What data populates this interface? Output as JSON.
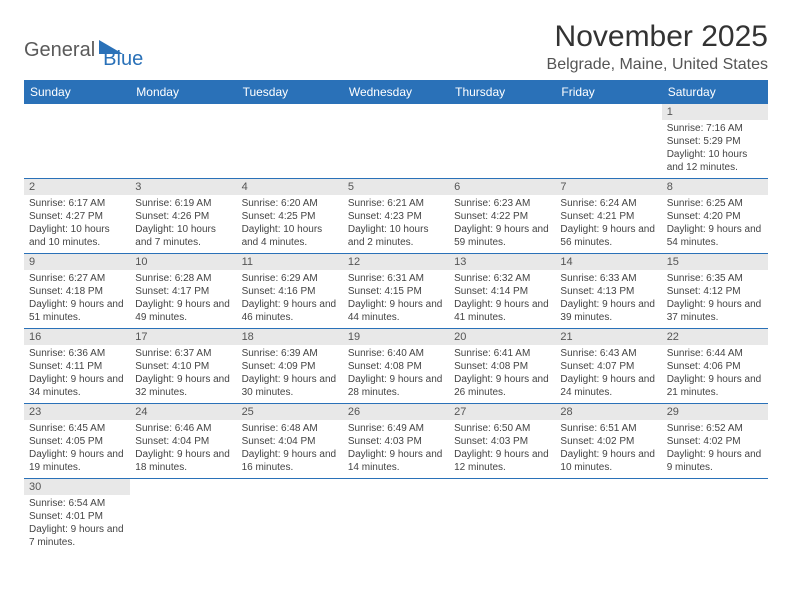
{
  "logo": {
    "dark": "General",
    "blue": "Blue"
  },
  "title": "November 2025",
  "location": "Belgrade, Maine, United States",
  "colors": {
    "header_bg": "#2a71b8",
    "header_text": "#ffffff",
    "daynum_bg": "#e8e8e8",
    "text": "#333333",
    "row_border": "#2a71b8"
  },
  "dayNames": [
    "Sunday",
    "Monday",
    "Tuesday",
    "Wednesday",
    "Thursday",
    "Friday",
    "Saturday"
  ],
  "weeks": [
    [
      null,
      null,
      null,
      null,
      null,
      null,
      {
        "n": "1",
        "sr": "7:16 AM",
        "ss": "5:29 PM",
        "dl": "10 hours and 12 minutes."
      }
    ],
    [
      {
        "n": "2",
        "sr": "6:17 AM",
        "ss": "4:27 PM",
        "dl": "10 hours and 10 minutes."
      },
      {
        "n": "3",
        "sr": "6:19 AM",
        "ss": "4:26 PM",
        "dl": "10 hours and 7 minutes."
      },
      {
        "n": "4",
        "sr": "6:20 AM",
        "ss": "4:25 PM",
        "dl": "10 hours and 4 minutes."
      },
      {
        "n": "5",
        "sr": "6:21 AM",
        "ss": "4:23 PM",
        "dl": "10 hours and 2 minutes."
      },
      {
        "n": "6",
        "sr": "6:23 AM",
        "ss": "4:22 PM",
        "dl": "9 hours and 59 minutes."
      },
      {
        "n": "7",
        "sr": "6:24 AM",
        "ss": "4:21 PM",
        "dl": "9 hours and 56 minutes."
      },
      {
        "n": "8",
        "sr": "6:25 AM",
        "ss": "4:20 PM",
        "dl": "9 hours and 54 minutes."
      }
    ],
    [
      {
        "n": "9",
        "sr": "6:27 AM",
        "ss": "4:18 PM",
        "dl": "9 hours and 51 minutes."
      },
      {
        "n": "10",
        "sr": "6:28 AM",
        "ss": "4:17 PM",
        "dl": "9 hours and 49 minutes."
      },
      {
        "n": "11",
        "sr": "6:29 AM",
        "ss": "4:16 PM",
        "dl": "9 hours and 46 minutes."
      },
      {
        "n": "12",
        "sr": "6:31 AM",
        "ss": "4:15 PM",
        "dl": "9 hours and 44 minutes."
      },
      {
        "n": "13",
        "sr": "6:32 AM",
        "ss": "4:14 PM",
        "dl": "9 hours and 41 minutes."
      },
      {
        "n": "14",
        "sr": "6:33 AM",
        "ss": "4:13 PM",
        "dl": "9 hours and 39 minutes."
      },
      {
        "n": "15",
        "sr": "6:35 AM",
        "ss": "4:12 PM",
        "dl": "9 hours and 37 minutes."
      }
    ],
    [
      {
        "n": "16",
        "sr": "6:36 AM",
        "ss": "4:11 PM",
        "dl": "9 hours and 34 minutes."
      },
      {
        "n": "17",
        "sr": "6:37 AM",
        "ss": "4:10 PM",
        "dl": "9 hours and 32 minutes."
      },
      {
        "n": "18",
        "sr": "6:39 AM",
        "ss": "4:09 PM",
        "dl": "9 hours and 30 minutes."
      },
      {
        "n": "19",
        "sr": "6:40 AM",
        "ss": "4:08 PM",
        "dl": "9 hours and 28 minutes."
      },
      {
        "n": "20",
        "sr": "6:41 AM",
        "ss": "4:08 PM",
        "dl": "9 hours and 26 minutes."
      },
      {
        "n": "21",
        "sr": "6:43 AM",
        "ss": "4:07 PM",
        "dl": "9 hours and 24 minutes."
      },
      {
        "n": "22",
        "sr": "6:44 AM",
        "ss": "4:06 PM",
        "dl": "9 hours and 21 minutes."
      }
    ],
    [
      {
        "n": "23",
        "sr": "6:45 AM",
        "ss": "4:05 PM",
        "dl": "9 hours and 19 minutes."
      },
      {
        "n": "24",
        "sr": "6:46 AM",
        "ss": "4:04 PM",
        "dl": "9 hours and 18 minutes."
      },
      {
        "n": "25",
        "sr": "6:48 AM",
        "ss": "4:04 PM",
        "dl": "9 hours and 16 minutes."
      },
      {
        "n": "26",
        "sr": "6:49 AM",
        "ss": "4:03 PM",
        "dl": "9 hours and 14 minutes."
      },
      {
        "n": "27",
        "sr": "6:50 AM",
        "ss": "4:03 PM",
        "dl": "9 hours and 12 minutes."
      },
      {
        "n": "28",
        "sr": "6:51 AM",
        "ss": "4:02 PM",
        "dl": "9 hours and 10 minutes."
      },
      {
        "n": "29",
        "sr": "6:52 AM",
        "ss": "4:02 PM",
        "dl": "9 hours and 9 minutes."
      }
    ],
    [
      {
        "n": "30",
        "sr": "6:54 AM",
        "ss": "4:01 PM",
        "dl": "9 hours and 7 minutes."
      },
      null,
      null,
      null,
      null,
      null,
      null
    ]
  ],
  "labels": {
    "sunrise": "Sunrise:",
    "sunset": "Sunset:",
    "daylight": "Daylight:"
  }
}
